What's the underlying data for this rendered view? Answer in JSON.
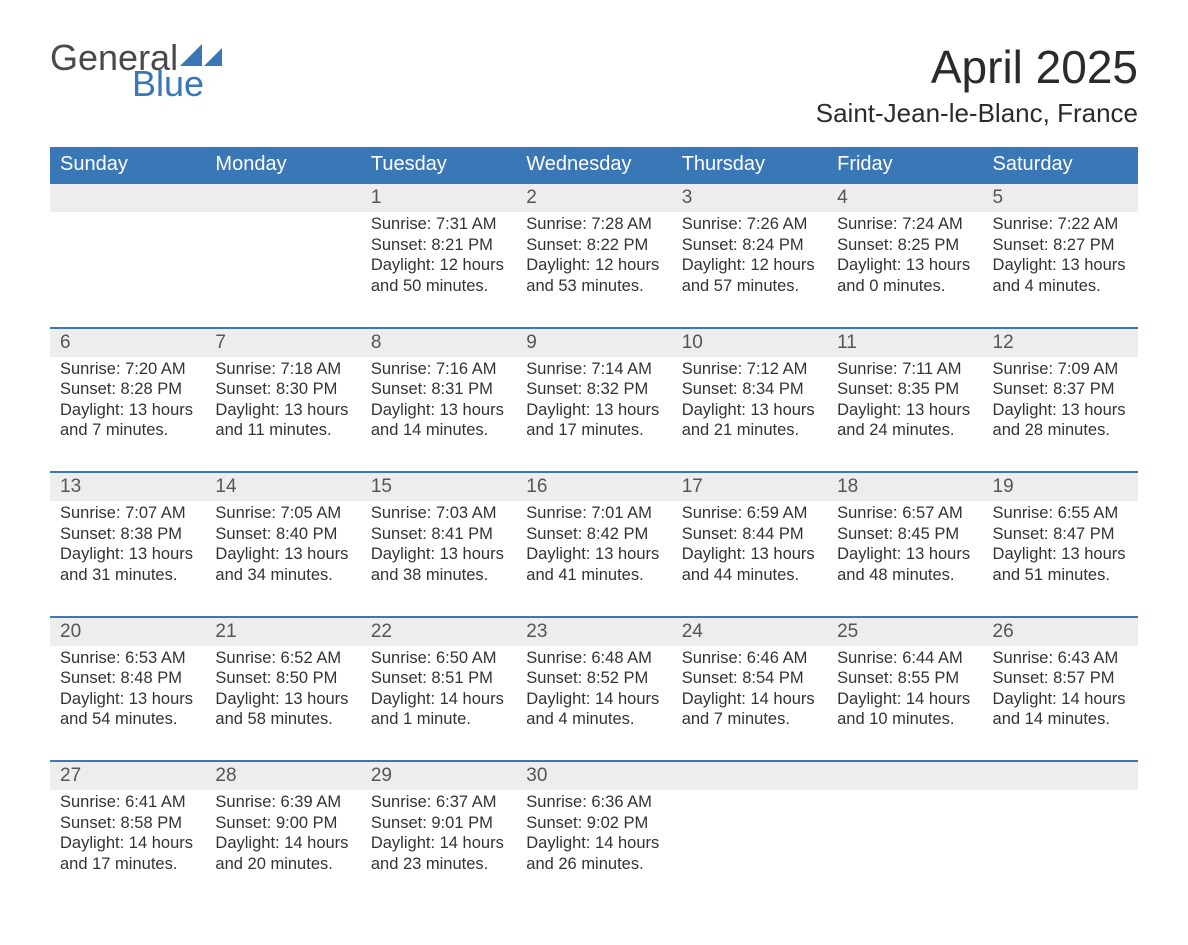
{
  "brand": {
    "line1": "General",
    "line2": "Blue",
    "flag_color": "#3a77b6",
    "text_gray": "#4a4a4a"
  },
  "title": "April 2025",
  "location": "Saint-Jean-le-Blanc, France",
  "colors": {
    "header_bg": "#3a77b6",
    "header_text": "#ffffff",
    "daynum_bg": "#ededed",
    "row_border": "#3a77b6",
    "body_text": "#333333",
    "page_bg": "#ffffff"
  },
  "day_headers": [
    "Sunday",
    "Monday",
    "Tuesday",
    "Wednesday",
    "Thursday",
    "Friday",
    "Saturday"
  ],
  "weeks": [
    {
      "nums": [
        "",
        "",
        "1",
        "2",
        "3",
        "4",
        "5"
      ],
      "cells": [
        [],
        [],
        [
          "Sunrise: 7:31 AM",
          "Sunset: 8:21 PM",
          "Daylight: 12 hours",
          "and 50 minutes."
        ],
        [
          "Sunrise: 7:28 AM",
          "Sunset: 8:22 PM",
          "Daylight: 12 hours",
          "and 53 minutes."
        ],
        [
          "Sunrise: 7:26 AM",
          "Sunset: 8:24 PM",
          "Daylight: 12 hours",
          "and 57 minutes."
        ],
        [
          "Sunrise: 7:24 AM",
          "Sunset: 8:25 PM",
          "Daylight: 13 hours",
          "and 0 minutes."
        ],
        [
          "Sunrise: 7:22 AM",
          "Sunset: 8:27 PM",
          "Daylight: 13 hours",
          "and 4 minutes."
        ]
      ]
    },
    {
      "nums": [
        "6",
        "7",
        "8",
        "9",
        "10",
        "11",
        "12"
      ],
      "cells": [
        [
          "Sunrise: 7:20 AM",
          "Sunset: 8:28 PM",
          "Daylight: 13 hours",
          "and 7 minutes."
        ],
        [
          "Sunrise: 7:18 AM",
          "Sunset: 8:30 PM",
          "Daylight: 13 hours",
          "and 11 minutes."
        ],
        [
          "Sunrise: 7:16 AM",
          "Sunset: 8:31 PM",
          "Daylight: 13 hours",
          "and 14 minutes."
        ],
        [
          "Sunrise: 7:14 AM",
          "Sunset: 8:32 PM",
          "Daylight: 13 hours",
          "and 17 minutes."
        ],
        [
          "Sunrise: 7:12 AM",
          "Sunset: 8:34 PM",
          "Daylight: 13 hours",
          "and 21 minutes."
        ],
        [
          "Sunrise: 7:11 AM",
          "Sunset: 8:35 PM",
          "Daylight: 13 hours",
          "and 24 minutes."
        ],
        [
          "Sunrise: 7:09 AM",
          "Sunset: 8:37 PM",
          "Daylight: 13 hours",
          "and 28 minutes."
        ]
      ]
    },
    {
      "nums": [
        "13",
        "14",
        "15",
        "16",
        "17",
        "18",
        "19"
      ],
      "cells": [
        [
          "Sunrise: 7:07 AM",
          "Sunset: 8:38 PM",
          "Daylight: 13 hours",
          "and 31 minutes."
        ],
        [
          "Sunrise: 7:05 AM",
          "Sunset: 8:40 PM",
          "Daylight: 13 hours",
          "and 34 minutes."
        ],
        [
          "Sunrise: 7:03 AM",
          "Sunset: 8:41 PM",
          "Daylight: 13 hours",
          "and 38 minutes."
        ],
        [
          "Sunrise: 7:01 AM",
          "Sunset: 8:42 PM",
          "Daylight: 13 hours",
          "and 41 minutes."
        ],
        [
          "Sunrise: 6:59 AM",
          "Sunset: 8:44 PM",
          "Daylight: 13 hours",
          "and 44 minutes."
        ],
        [
          "Sunrise: 6:57 AM",
          "Sunset: 8:45 PM",
          "Daylight: 13 hours",
          "and 48 minutes."
        ],
        [
          "Sunrise: 6:55 AM",
          "Sunset: 8:47 PM",
          "Daylight: 13 hours",
          "and 51 minutes."
        ]
      ]
    },
    {
      "nums": [
        "20",
        "21",
        "22",
        "23",
        "24",
        "25",
        "26"
      ],
      "cells": [
        [
          "Sunrise: 6:53 AM",
          "Sunset: 8:48 PM",
          "Daylight: 13 hours",
          "and 54 minutes."
        ],
        [
          "Sunrise: 6:52 AM",
          "Sunset: 8:50 PM",
          "Daylight: 13 hours",
          "and 58 minutes."
        ],
        [
          "Sunrise: 6:50 AM",
          "Sunset: 8:51 PM",
          "Daylight: 14 hours",
          "and 1 minute."
        ],
        [
          "Sunrise: 6:48 AM",
          "Sunset: 8:52 PM",
          "Daylight: 14 hours",
          "and 4 minutes."
        ],
        [
          "Sunrise: 6:46 AM",
          "Sunset: 8:54 PM",
          "Daylight: 14 hours",
          "and 7 minutes."
        ],
        [
          "Sunrise: 6:44 AM",
          "Sunset: 8:55 PM",
          "Daylight: 14 hours",
          "and 10 minutes."
        ],
        [
          "Sunrise: 6:43 AM",
          "Sunset: 8:57 PM",
          "Daylight: 14 hours",
          "and 14 minutes."
        ]
      ]
    },
    {
      "nums": [
        "27",
        "28",
        "29",
        "30",
        "",
        "",
        ""
      ],
      "cells": [
        [
          "Sunrise: 6:41 AM",
          "Sunset: 8:58 PM",
          "Daylight: 14 hours",
          "and 17 minutes."
        ],
        [
          "Sunrise: 6:39 AM",
          "Sunset: 9:00 PM",
          "Daylight: 14 hours",
          "and 20 minutes."
        ],
        [
          "Sunrise: 6:37 AM",
          "Sunset: 9:01 PM",
          "Daylight: 14 hours",
          "and 23 minutes."
        ],
        [
          "Sunrise: 6:36 AM",
          "Sunset: 9:02 PM",
          "Daylight: 14 hours",
          "and 26 minutes."
        ],
        [],
        [],
        []
      ]
    }
  ]
}
